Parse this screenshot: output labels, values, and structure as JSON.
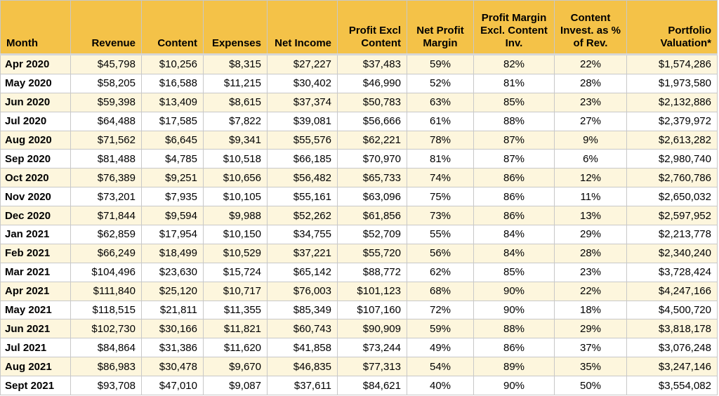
{
  "table": {
    "headers": [
      "Month",
      "Revenue",
      "Content",
      "Expenses",
      "Net Income",
      "Profit Excl Content",
      "Net Profit Margin",
      "Profit Margin Excl. Content Inv.",
      "Content Invest. as % of Rev.",
      "Portfolio Valuation*"
    ],
    "header_color": "#f4c248",
    "stripe_color": "#fdf6dd",
    "rows": [
      [
        "Apr 2020",
        "$45,798",
        "$10,256",
        "$8,315",
        "$27,227",
        "$37,483",
        "59%",
        "82%",
        "22%",
        "$1,574,286"
      ],
      [
        "May 2020",
        "$58,205",
        "$16,588",
        "$11,215",
        "$30,402",
        "$46,990",
        "52%",
        "81%",
        "28%",
        "$1,973,580"
      ],
      [
        "Jun 2020",
        "$59,398",
        "$13,409",
        "$8,615",
        "$37,374",
        "$50,783",
        "63%",
        "85%",
        "23%",
        "$2,132,886"
      ],
      [
        "Jul 2020",
        "$64,488",
        "$17,585",
        "$7,822",
        "$39,081",
        "$56,666",
        "61%",
        "88%",
        "27%",
        "$2,379,972"
      ],
      [
        "Aug 2020",
        "$71,562",
        "$6,645",
        "$9,341",
        "$55,576",
        "$62,221",
        "78%",
        "87%",
        "9%",
        "$2,613,282"
      ],
      [
        "Sep 2020",
        "$81,488",
        "$4,785",
        "$10,518",
        "$66,185",
        "$70,970",
        "81%",
        "87%",
        "6%",
        "$2,980,740"
      ],
      [
        "Oct 2020",
        "$76,389",
        "$9,251",
        "$10,656",
        "$56,482",
        "$65,733",
        "74%",
        "86%",
        "12%",
        "$2,760,786"
      ],
      [
        "Nov 2020",
        "$73,201",
        "$7,935",
        "$10,105",
        "$55,161",
        "$63,096",
        "75%",
        "86%",
        "11%",
        "$2,650,032"
      ],
      [
        "Dec 2020",
        "$71,844",
        "$9,594",
        "$9,988",
        "$52,262",
        "$61,856",
        "73%",
        "86%",
        "13%",
        "$2,597,952"
      ],
      [
        "Jan 2021",
        "$62,859",
        "$17,954",
        "$10,150",
        "$34,755",
        "$52,709",
        "55%",
        "84%",
        "29%",
        "$2,213,778"
      ],
      [
        "Feb 2021",
        "$66,249",
        "$18,499",
        "$10,529",
        "$37,221",
        "$55,720",
        "56%",
        "84%",
        "28%",
        "$2,340,240"
      ],
      [
        "Mar 2021",
        "$104,496",
        "$23,630",
        "$15,724",
        "$65,142",
        "$88,772",
        "62%",
        "85%",
        "23%",
        "$3,728,424"
      ],
      [
        "Apr 2021",
        "$111,840",
        "$25,120",
        "$10,717",
        "$76,003",
        "$101,123",
        "68%",
        "90%",
        "22%",
        "$4,247,166"
      ],
      [
        "May 2021",
        "$118,515",
        "$21,811",
        "$11,355",
        "$85,349",
        "$107,160",
        "72%",
        "90%",
        "18%",
        "$4,500,720"
      ],
      [
        "Jun 2021",
        "$102,730",
        "$30,166",
        "$11,821",
        "$60,743",
        "$90,909",
        "59%",
        "88%",
        "29%",
        "$3,818,178"
      ],
      [
        "Jul 2021",
        "$84,864",
        "$31,386",
        "$11,620",
        "$41,858",
        "$73,244",
        "49%",
        "86%",
        "37%",
        "$3,076,248"
      ],
      [
        "Aug 2021",
        "$86,983",
        "$30,478",
        "$9,670",
        "$46,835",
        "$77,313",
        "54%",
        "89%",
        "35%",
        "$3,247,146"
      ],
      [
        "Sept 2021",
        "$93,708",
        "$47,010",
        "$9,087",
        "$37,611",
        "$84,621",
        "40%",
        "90%",
        "50%",
        "$3,554,082"
      ]
    ]
  }
}
